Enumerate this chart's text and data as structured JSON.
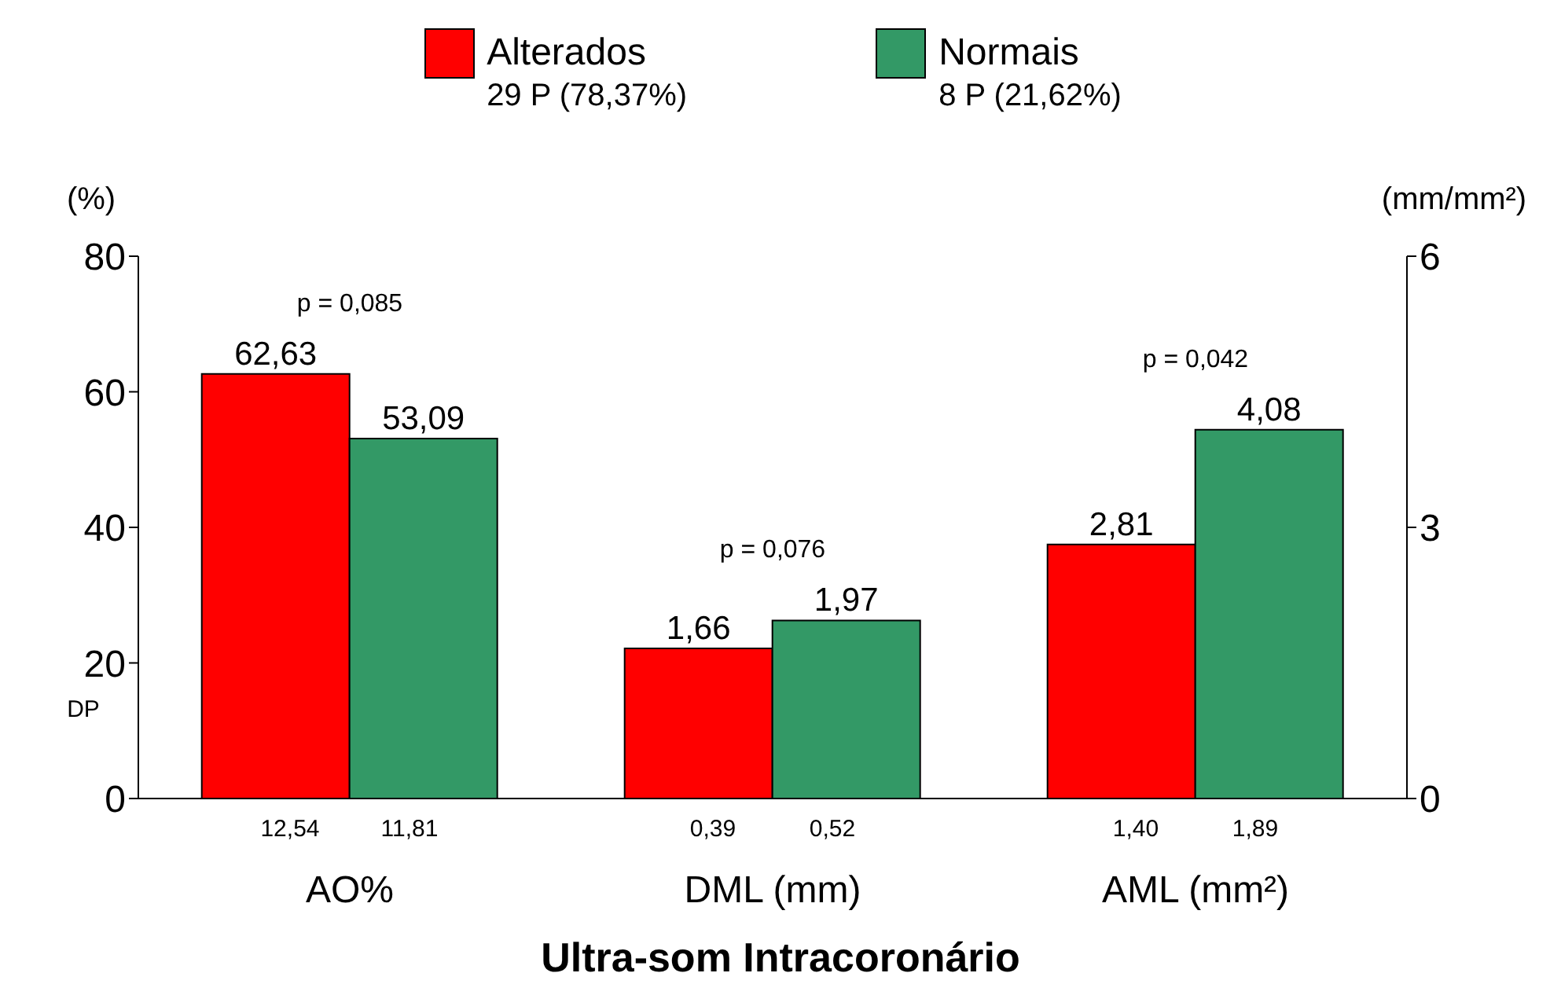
{
  "chart_data": {
    "type": "bar",
    "xlabel": "Ultra-som Intracoronário",
    "ylabel": "(%)",
    "y2label": "(mm/mm²)",
    "categories": [
      "AO%",
      "DML (mm)",
      "AML (mm²)"
    ],
    "series": [
      {
        "name": "Alterados",
        "color": "#ff0000",
        "values": [
          62.63,
          null,
          null
        ],
        "value_labels": [
          "62,63",
          null,
          null
        ]
      },
      {
        "name": "Normais",
        "color": "#339966",
        "values": [
          53.09,
          null,
          null
        ],
        "value_labels": [
          "53,09",
          null,
          null
        ]
      },
      {
        "color": "#ff0000",
        "axis": "y2",
        "values": [
          null,
          1.66,
          2.81
        ],
        "value_labels": [
          null,
          "1,66",
          "2,81"
        ]
      },
      {
        "color": "#339966",
        "axis": "y2",
        "values": [
          null,
          1.97,
          4.08
        ],
        "value_labels": [
          null,
          "1,97",
          "4,08"
        ]
      }
    ],
    "ylim": [
      0,
      80
    ],
    "yticks": [
      0,
      20,
      40,
      60,
      80
    ],
    "y2lim": [
      0,
      6
    ],
    "y2ticks": [
      0,
      3,
      6
    ],
    "legend": "top",
    "annotations": [
      "29 P (78,37%)",
      "8 P (21,62%)",
      "DP",
      "p = 0,085",
      "p = 0,076",
      "p = 0,042",
      "12,54",
      "11,81",
      "0,39",
      "0,52",
      "1,40",
      "1,89"
    ]
  }
}
